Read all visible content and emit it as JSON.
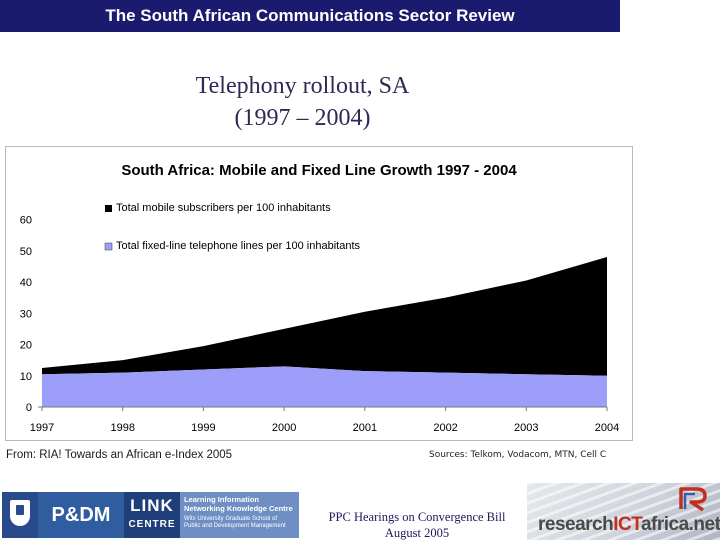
{
  "header": {
    "banner": "The South African Communications Sector Review"
  },
  "slide": {
    "title_line1": "Telephony rollout, SA",
    "title_line2": "(1997 – 2004)"
  },
  "chart_data": {
    "type": "area",
    "title": "South Africa: Mobile and Fixed Line Growth 1997 - 2004",
    "x": [
      "1997",
      "1998",
      "1999",
      "2000",
      "2001",
      "2002",
      "2003",
      "2004"
    ],
    "ylim": [
      0,
      60
    ],
    "yticks": [
      "0",
      "10",
      "20",
      "30",
      "40",
      "50",
      "60"
    ],
    "stacked": true,
    "legend_position": "top-left",
    "grid": false,
    "series": [
      {
        "name": "Total mobile subscribers per 100 inhabitants",
        "color": "#000000",
        "values": [
          2,
          4,
          7.5,
          12,
          19,
          24,
          30,
          38
        ]
      },
      {
        "name": "Total fixed-line telephone lines per 100 inhabitants",
        "color": "#9d9dfa",
        "values": [
          10.5,
          11,
          12,
          13,
          11.5,
          11,
          10.5,
          10
        ]
      }
    ]
  },
  "sources": {
    "left": "From: RIA! Towards an African e-Index 2005",
    "right": "Sources: Telkom, Vodacom, MTN, Cell C"
  },
  "footer": {
    "line1": "PPC Hearings on Convergence Bill",
    "line2": "August 2005",
    "logo_pdm": "P&DM",
    "logo_link": "LINK",
    "logo_centre": "CENTRE",
    "link_desc_1": "Learning Information Networking Knowledge Centre",
    "link_desc_2": "Wits University Graduate School of Public and Development Management",
    "ria_research": "research",
    "ria_ict": "ICT",
    "ria_africa": "africa.net"
  }
}
